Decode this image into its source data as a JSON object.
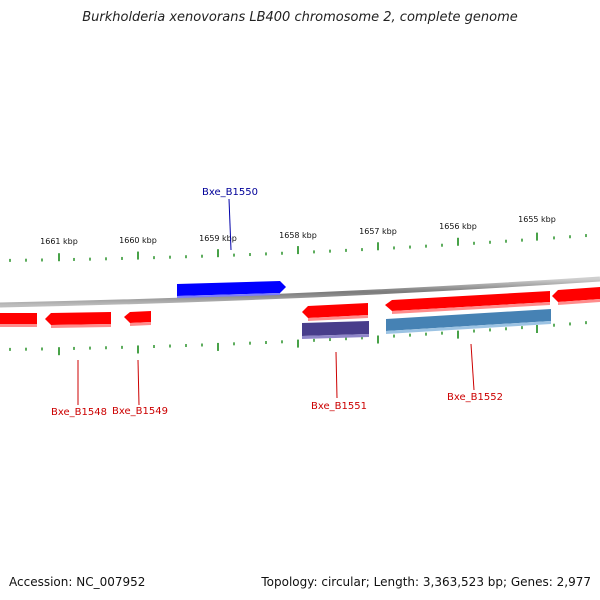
{
  "title": "Burkholderia xenovorans LB400 chromosome 2, complete genome",
  "footer": {
    "accession": "Accession: NC_007952",
    "summary": "Topology: circular; Length: 3,363,523 bp; Genes: 2,977"
  },
  "colors": {
    "forward_gene": "#0000ff",
    "reverse_gene": "#ff0000",
    "reverse_cds_product": "#483d8b",
    "reverse_cds_product_2": "#4682b4",
    "tick": "#1a8a1a",
    "backbone": "#8a8a8a",
    "label_reverse": "#cc0000",
    "label_forward": "#000099"
  },
  "scale": {
    "tick_labels": [
      "1661 kbp",
      "1660 kbp",
      "1659 kbp",
      "1658 kbp",
      "1657 kbp",
      "1656 kbp",
      "1655 kbp"
    ]
  },
  "genes": [
    {
      "label": "Bxe_B1548",
      "strand": "reverse",
      "color_key": "reverse_gene"
    },
    {
      "label": "Bxe_B1549",
      "strand": "reverse",
      "color_key": "reverse_gene"
    },
    {
      "label": "Bxe_B1550",
      "strand": "forward",
      "color_key": "forward_gene"
    },
    {
      "label": "Bxe_B1551",
      "strand": "reverse",
      "color_key": "reverse_gene"
    },
    {
      "label": "Bxe_B1552",
      "strand": "reverse",
      "color_key": "reverse_gene"
    }
  ]
}
